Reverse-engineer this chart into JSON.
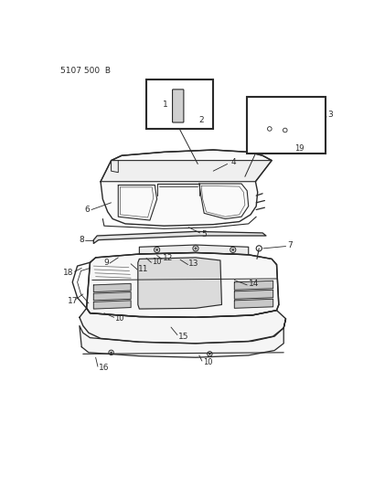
{
  "title": "5107 500  B",
  "bg_color": "#ffffff",
  "line_color": "#2a2a2a",
  "text_color": "#2a2a2a",
  "title_fontsize": 6.5,
  "label_fontsize": 6.5,
  "fig_width": 4.1,
  "fig_height": 5.33,
  "dpi": 100
}
